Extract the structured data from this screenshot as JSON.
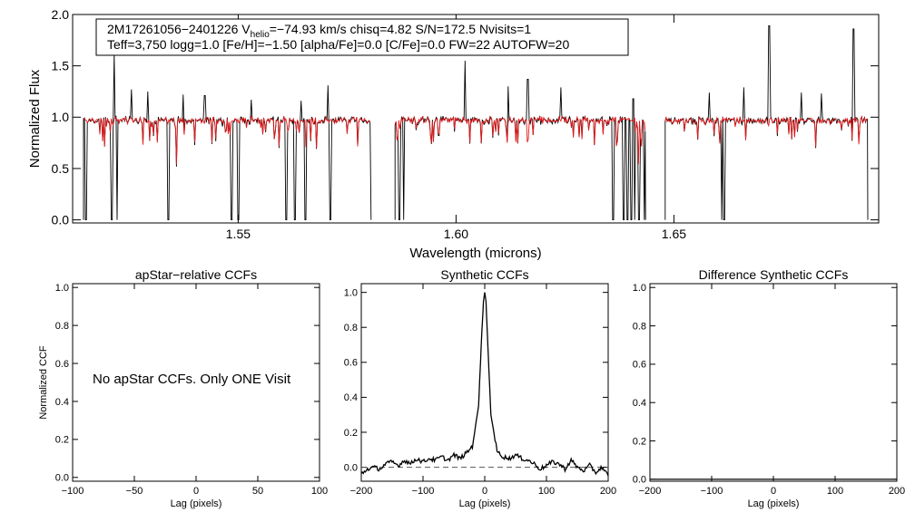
{
  "header": {
    "line1_a": "2M17261056−2401226  V",
    "line1_sub": "helio",
    "line1_b": "=−74.93 km/s  chisq=4.82  S/N=172.5  Nvisits=1",
    "line2": "Teff=3,750 logg=1.0 [Fe/H]=−1.50 [alpha/Fe]=0.0 [C/Fe]=0.0 FW=22 AUTOFW=20"
  },
  "colors": {
    "observed": "#000000",
    "model": "#e41a1c",
    "zero_line": "#555555"
  },
  "chart_data": [
    {
      "type": "line",
      "panel": "spectrum",
      "title": "",
      "xlabel": "Wavelength (microns)",
      "ylabel": "Normalized Flux",
      "xlim": [
        1.512,
        1.697
      ],
      "ylim": [
        -0.03,
        2.0
      ],
      "xticks": [
        1.55,
        1.6,
        1.65
      ],
      "xtick_labels": [
        "1.55",
        "1.60",
        "1.65"
      ],
      "yticks": [
        0.0,
        0.5,
        1.0,
        1.5,
        2.0
      ],
      "ytick_labels": [
        "0.0",
        "0.5",
        "1.0",
        "1.5",
        "2.0"
      ],
      "chips": [
        [
          1.5145,
          1.5805
        ],
        [
          1.586,
          1.6435
        ],
        [
          1.648,
          1.6945
        ]
      ],
      "continuum": 0.97,
      "emission_spikes": [
        {
          "x": 1.5216,
          "y": 1.62
        },
        {
          "x": 1.5255,
          "y": 1.27
        },
        {
          "x": 1.5292,
          "y": 1.25
        },
        {
          "x": 1.5374,
          "y": 1.22
        },
        {
          "x": 1.5423,
          "y": 1.21
        },
        {
          "x": 1.553,
          "y": 1.17
        },
        {
          "x": 1.5645,
          "y": 1.16
        },
        {
          "x": 1.5706,
          "y": 1.31
        },
        {
          "x": 1.602,
          "y": 1.55
        },
        {
          "x": 1.612,
          "y": 1.3
        },
        {
          "x": 1.6165,
          "y": 1.37
        },
        {
          "x": 1.624,
          "y": 1.29
        },
        {
          "x": 1.6407,
          "y": 1.18
        },
        {
          "x": 1.6581,
          "y": 1.24
        },
        {
          "x": 1.666,
          "y": 1.29
        },
        {
          "x": 1.6719,
          "y": 1.89
        },
        {
          "x": 1.6793,
          "y": 1.24
        },
        {
          "x": 1.6838,
          "y": 1.23
        },
        {
          "x": 1.6912,
          "y": 1.86
        }
      ],
      "deep_absorptions": [
        1.515,
        1.521,
        1.5222,
        1.534,
        1.5485,
        1.55,
        1.561,
        1.563,
        1.5655,
        1.5712,
        1.587,
        1.588,
        1.636,
        1.6385,
        1.6393,
        1.6402,
        1.641,
        1.642,
        1.6432,
        1.661,
        1.6615
      ]
    },
    {
      "type": "line",
      "panel": "apstar_ccf",
      "title": "apStar−relative CCFs",
      "xlabel": "Lag (pixels)",
      "ylabel": "Normalized CCF",
      "xlim": [
        -100,
        100
      ],
      "ylim": [
        -0.02,
        1.02
      ],
      "xticks": [
        -100,
        -50,
        0,
        50,
        100
      ],
      "xtick_labels": [
        "−100",
        "−50",
        "0",
        "50",
        "100"
      ],
      "yticks": [
        0.0,
        0.2,
        0.4,
        0.6,
        0.8,
        1.0
      ],
      "ytick_labels": [
        "0.0",
        "0.2",
        "0.4",
        "0.6",
        "0.8",
        "1.0"
      ],
      "annotation": "No apStar CCFs.  Only ONE Visit"
    },
    {
      "type": "line",
      "panel": "synthetic_ccf",
      "title": "Synthetic CCFs",
      "xlabel": "Lag (pixels)",
      "ylabel": "",
      "xlim": [
        -200,
        200
      ],
      "ylim": [
        -0.08,
        1.05
      ],
      "xticks": [
        -200,
        -100,
        0,
        100,
        200
      ],
      "xtick_labels": [
        "−200",
        "−100",
        "0",
        "100",
        "200"
      ],
      "yticks": [
        0.0,
        0.2,
        0.4,
        0.6,
        0.8,
        1.0
      ],
      "ytick_labels": [
        "0.0",
        "0.2",
        "0.4",
        "0.6",
        "0.8",
        "1.0"
      ],
      "peak": {
        "x": 0,
        "y": 1.0
      },
      "zero_line": 0.0,
      "x": [
        -200,
        -190,
        -180,
        -170,
        -160,
        -150,
        -140,
        -130,
        -120,
        -110,
        -100,
        -90,
        -80,
        -70,
        -60,
        -50,
        -40,
        -30,
        -20,
        -10,
        -5,
        -2,
        0,
        2,
        5,
        10,
        20,
        30,
        40,
        50,
        60,
        70,
        80,
        90,
        100,
        110,
        120,
        130,
        140,
        150,
        160,
        170,
        180,
        190,
        200
      ],
      "y": [
        -0.04,
        -0.01,
        0.0,
        -0.01,
        0.02,
        0.03,
        0.01,
        0.04,
        0.02,
        0.05,
        0.03,
        0.05,
        0.04,
        0.06,
        0.04,
        0.07,
        0.05,
        0.08,
        0.12,
        0.35,
        0.75,
        0.95,
        1.0,
        0.95,
        0.7,
        0.3,
        0.09,
        0.06,
        0.05,
        0.07,
        0.05,
        0.04,
        0.02,
        -0.01,
        0.01,
        0.03,
        0.02,
        -0.01,
        0.04,
        0.0,
        -0.02,
        0.01,
        -0.03,
        0.0,
        -0.05
      ]
    },
    {
      "type": "line",
      "panel": "difference_ccf",
      "title": "Difference Synthetic CCFs",
      "xlabel": "Lag (pixels)",
      "ylabel": "",
      "xlim": [
        -200,
        200
      ],
      "ylim": [
        -0.01,
        1.02
      ],
      "xticks": [
        -200,
        -100,
        0,
        100,
        200
      ],
      "xtick_labels": [
        "−200",
        "−100",
        "0",
        "100",
        "200"
      ],
      "yticks": [
        0.0,
        0.2,
        0.4,
        0.6,
        0.8,
        1.0
      ],
      "ytick_labels": [
        "0.0",
        "0.2",
        "0.4",
        "0.6",
        "0.8",
        "1.0"
      ],
      "x": [
        -200,
        200
      ],
      "y": [
        0.0,
        0.0
      ]
    }
  ]
}
